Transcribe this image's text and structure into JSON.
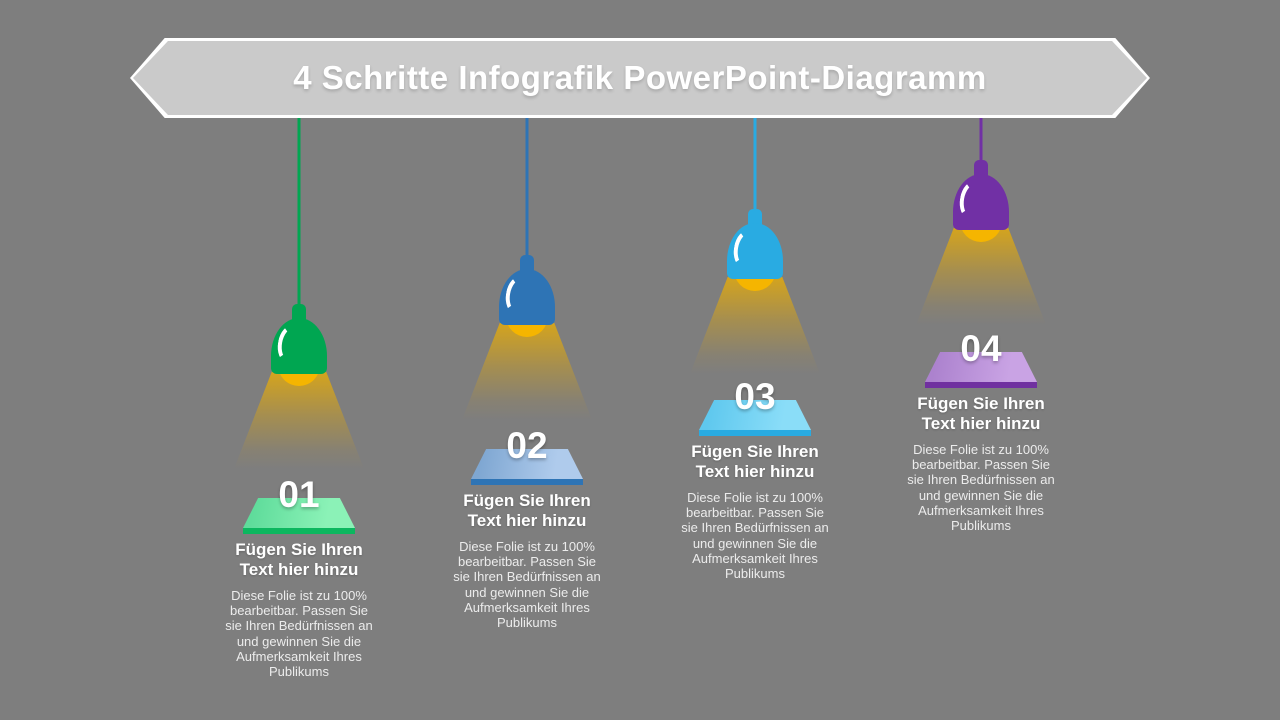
{
  "slide": {
    "title": "4 Schritte Infografik PowerPoint-Diagramm",
    "colors": {
      "background": "#7E7E7E",
      "banner_fill": "#CACACA",
      "banner_border": "#FFFFFF",
      "title_text": "#FFFFFF",
      "bulb": "#F5B500",
      "beam_gold": "#D9A618"
    }
  },
  "steps": [
    {
      "number": "01",
      "icon": "pendant-lamp-icon",
      "heading": "Fügen Sie Ihren\nText hier hinzu",
      "body": "Diese Folie ist zu 100%\nbearbeitbar. Passen Sie\nsie Ihren Bedürfnissen an\nund gewinnen Sie die\nAufmerksamkeit Ihres\nPublikums",
      "colors": {
        "lamp": "#00A651",
        "platform_light": "#8BF2B7",
        "platform_dark": "#5FDC9B",
        "platform_edge": "#0CB75F"
      }
    },
    {
      "number": "02",
      "icon": "pendant-lamp-icon",
      "heading": "Fügen Sie Ihren\nText hier hinzu",
      "body": "Diese Folie ist zu 100%\nbearbeitbar. Passen Sie\nsie Ihren Bedürfnissen an\nund gewinnen Sie die\nAufmerksamkeit Ihres\nPublikums",
      "colors": {
        "lamp": "#2E74B5",
        "platform_light": "#AFCBEC",
        "platform_dark": "#7FA7D2",
        "platform_edge": "#2E74B5"
      }
    },
    {
      "number": "03",
      "icon": "pendant-lamp-icon",
      "heading": "Fügen Sie Ihren\nText hier hinzu",
      "body": "Diese Folie ist zu 100%\nbearbeitbar. Passen Sie\nsie Ihren Bedürfnissen an\nund gewinnen Sie die\nAufmerksamkeit Ihres\nPublikums",
      "colors": {
        "lamp": "#29ABE2",
        "platform_light": "#8ADDF8",
        "platform_dark": "#5FC8EE",
        "platform_edge": "#29ABE2"
      }
    },
    {
      "number": "04",
      "icon": "pendant-lamp-icon",
      "heading": "Fügen Sie Ihren\nText hier hinzu",
      "body": "Diese Folie ist zu 100%\nbearbeitbar. Passen Sie\nsie Ihren Bedürfnissen an\nund gewinnen Sie die\nAufmerksamkeit Ihres\nPublikums",
      "colors": {
        "lamp": "#7130A5",
        "platform_light": "#C9A3E4",
        "platform_dark": "#AC82CE",
        "platform_edge": "#7030A0"
      }
    }
  ]
}
